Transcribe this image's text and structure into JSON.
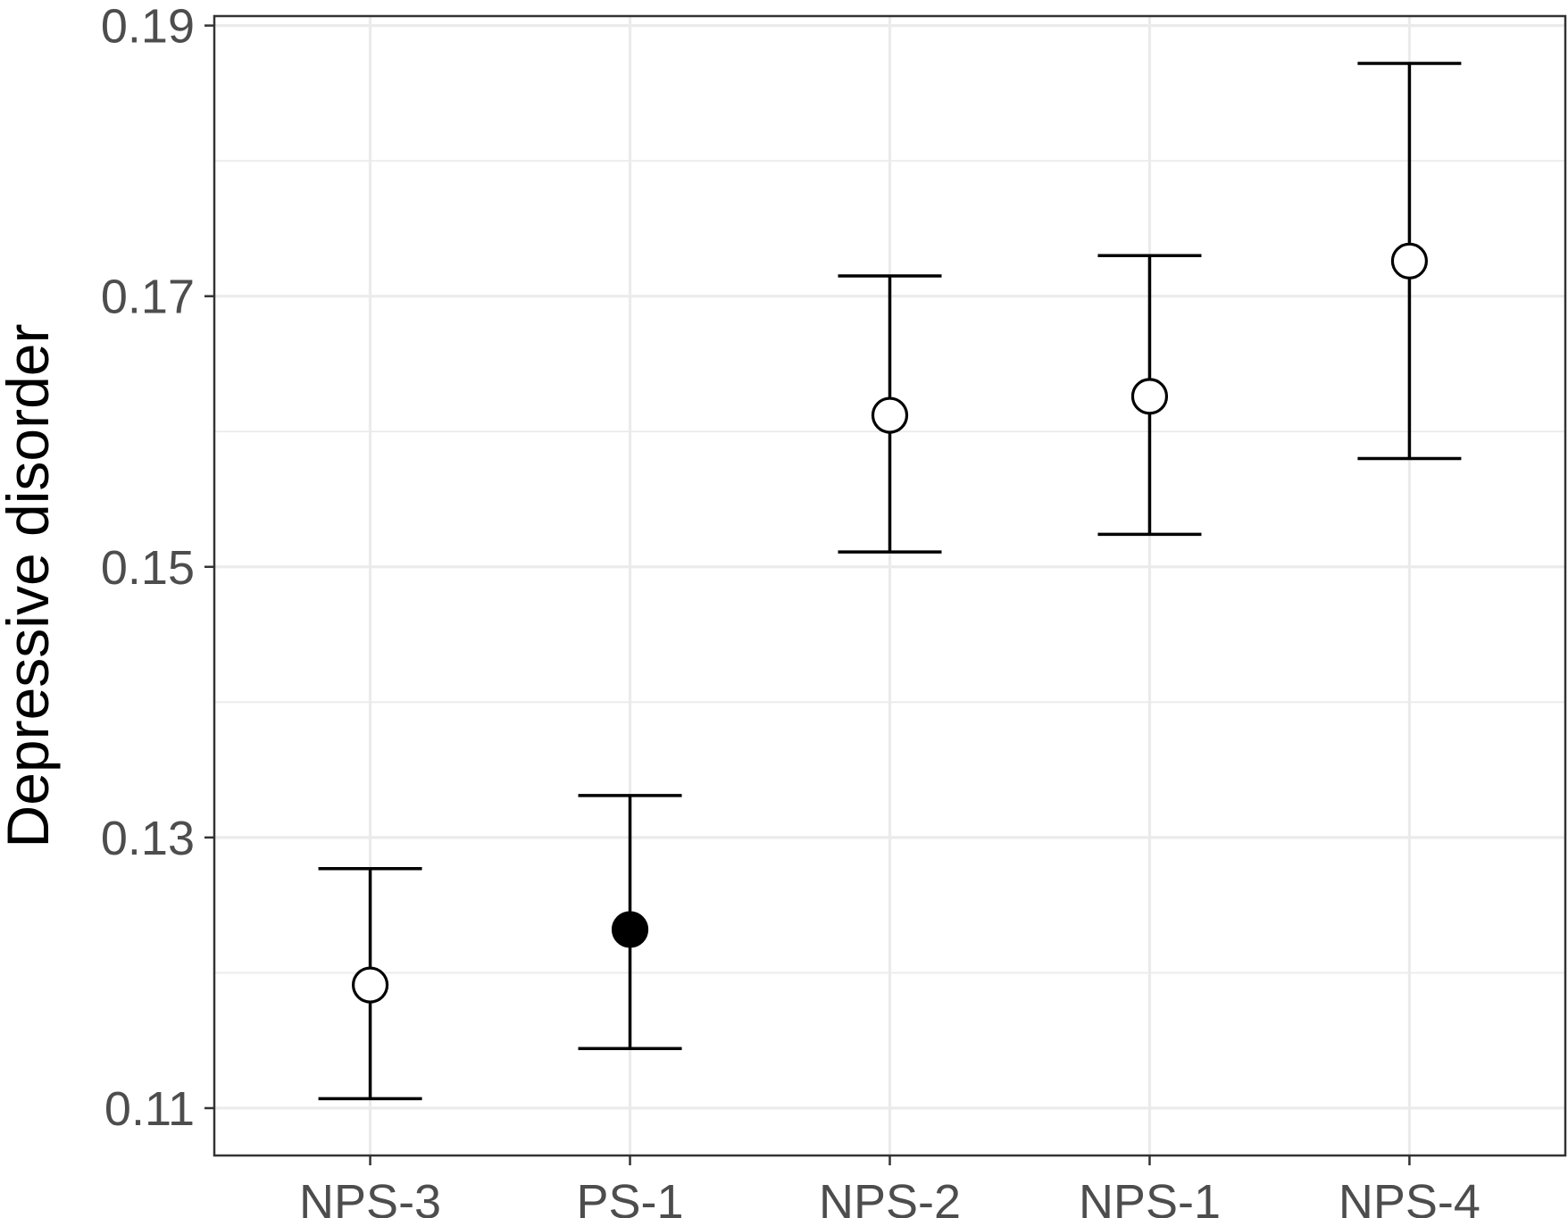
{
  "chart_data": {
    "type": "scatter",
    "title": "",
    "xlabel": "",
    "ylabel": "Depressive disorder",
    "ylim": [
      0.1065,
      0.1907
    ],
    "y_ticks": [
      "0.11",
      "0.13",
      "0.15",
      "0.17",
      "0.19"
    ],
    "y_tick_values": [
      0.11,
      0.13,
      0.15,
      0.17,
      0.19
    ],
    "grid": true,
    "legend": "none",
    "categories": [
      "NPS-3",
      "PS-1",
      "NPS-2",
      "NPS-1",
      "NPS-4"
    ],
    "values": [
      0.1191,
      0.1232,
      0.1612,
      0.1626,
      0.1726
    ],
    "lower": [
      0.1107,
      0.1144,
      0.1511,
      0.1524,
      0.158
    ],
    "upper": [
      0.1277,
      0.1331,
      0.1715,
      0.173,
      0.1872
    ],
    "marker_filled": [
      false,
      true,
      false,
      false,
      false
    ],
    "colors": {
      "marker": "#000000",
      "grid": "#ebebeb",
      "tick_text": "#4d4d4d",
      "border": "#333333"
    }
  }
}
